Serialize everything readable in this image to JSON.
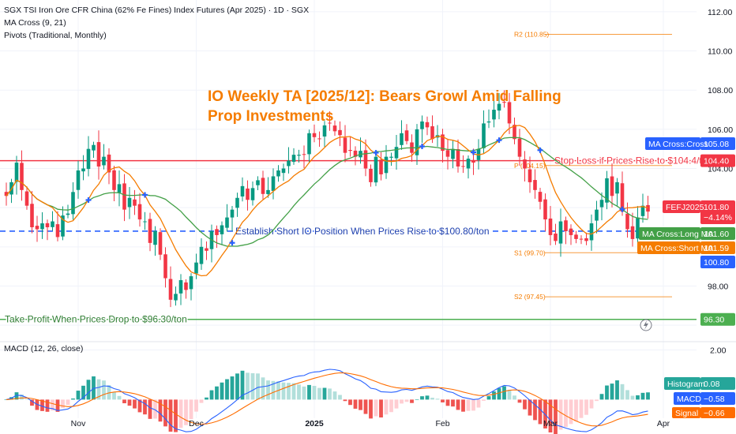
{
  "header": {
    "symbol_line": "SGX TSI Iron Ore CFR China (62% Fe Fines) Index Futures (Apr 2025) · 1D · SGX",
    "indicator_1": "MA Cross (9, 21)",
    "indicator_2": "Pivots (Traditional, Monthly)"
  },
  "overlay_title": {
    "line1": "IO Weekly TA [2025/12]: Bears Growl Amid Falling",
    "line2": "Prop Investments",
    "color": "#f57c00"
  },
  "colors": {
    "up": "#089981",
    "down": "#f23645",
    "ma_long": "#43a047",
    "ma_short": "#f57c00",
    "stop_loss": "#f23645",
    "entry": "#2962ff",
    "take_profit": "#4caf50",
    "pivot": "#f57c00",
    "macd_line": "#2962ff",
    "signal_line": "#ff6d00",
    "hist_up": "#26a69a",
    "hist_up_light": "#b2dfdb",
    "hist_down": "#ef5350",
    "hist_down_light": "#ffcdd2"
  },
  "chart_data": [
    {
      "type": "candlestick",
      "title": "SGX TSI Iron Ore CFR China (62% Fe Fines) Index Futures (Apr 2025)",
      "y_axis": {
        "min": 95.2,
        "max": 112.6,
        "ticks": [
          "112.00",
          "110.00",
          "108.00",
          "106.00",
          "104.00",
          "98.00"
        ]
      },
      "x_ticks": [
        "Nov",
        "Dec",
        "2025",
        "Feb",
        "Mar",
        "Apr"
      ],
      "closes": [
        102.6,
        103.3,
        104.3,
        102.9,
        102.1,
        101.0,
        100.9,
        101.2,
        101.0,
        101.3,
        100.5,
        101.6,
        101.7,
        102.8,
        103.9,
        104.0,
        105.0,
        105.2,
        104.1,
        104.6,
        103.8,
        102.9,
        103.2,
        101.9,
        102.5,
        102.1,
        101.4,
        101.3,
        100.2,
        100.8,
        99.6,
        98.4,
        97.3,
        97.6,
        98.3,
        97.8,
        98.5,
        99.2,
        100.0,
        99.8,
        100.8,
        100.6,
        101.1,
        101.5,
        101.9,
        102.5,
        103.1,
        102.4,
        103.0,
        103.4,
        102.7,
        102.9,
        103.6,
        103.9,
        104.0,
        104.4,
        104.7,
        104.7,
        104.7,
        105.8,
        105.6,
        105.5,
        106.2,
        106.3,
        105.9,
        105.7,
        104.8,
        104.9,
        104.6,
        104.9,
        104.0,
        103.3,
        104.6,
        103.7,
        104.6,
        104.6,
        105.1,
        105.8,
        105.4,
        104.8,
        106.0,
        106.4,
        106.1,
        105.5,
        105.7,
        104.9,
        104.6,
        105.0,
        104.1,
        104.1,
        104.5,
        104.3,
        105.0,
        106.3,
        106.4,
        107.0,
        107.3,
        107.4,
        106.3,
        105.5,
        104.6,
        104.0,
        103.3,
        102.9,
        102.3,
        101.4,
        100.6,
        100.3,
        101.3,
        100.8,
        100.6,
        100.4,
        100.4,
        100.3,
        101.2,
        101.9,
        102.4,
        103.5,
        102.6,
        103.3,
        101.8,
        100.9,
        100.4,
        101.5,
        102.1,
        101.8
      ],
      "last_price": "101.80",
      "change_pct": "−4.14%",
      "symbol": "FEFJ2025",
      "ma_cross_long": "101.60",
      "ma_cross_short": "101.59",
      "ma_cross_marker": "105.08",
      "cross_markers_label": "MA Cross:Cross",
      "pivots": [
        {
          "label": "R2 (110.85)",
          "value": 110.85
        },
        {
          "label": "P (104.15)",
          "value": 104.15
        },
        {
          "label": "S1 (99.70)",
          "value": 99.7
        },
        {
          "label": "S2 (97.45)",
          "value": 97.45
        }
      ],
      "levels": [
        {
          "label": "Stop Loss if Prices Rise to $104.4/ton",
          "value": 104.4,
          "tag": "104.40"
        },
        {
          "label": "Establish Short IO Position When Prices Rise to $100.80/ton",
          "value": 100.8,
          "tag": "100.80"
        },
        {
          "label": "Take Profit When Prices Drop to $96.30/ton",
          "value": 96.3,
          "tag": "96.30"
        }
      ],
      "legend_tags": {
        "ma_long_label": "MA Cross:Long MA",
        "ma_short_label": "MA Cross:Short MA"
      }
    },
    {
      "type": "line+bar",
      "title": "MACD (12, 26, close)",
      "y_axis": {
        "min": -0.75,
        "max": 2.3,
        "ticks": [
          "2.00"
        ]
      },
      "histogram_label": "Histogram",
      "histogram_value": "0.08",
      "macd_label": "MACD",
      "macd_value": "−0.58",
      "signal_label": "Signal",
      "signal_value": "−0.66"
    }
  ]
}
